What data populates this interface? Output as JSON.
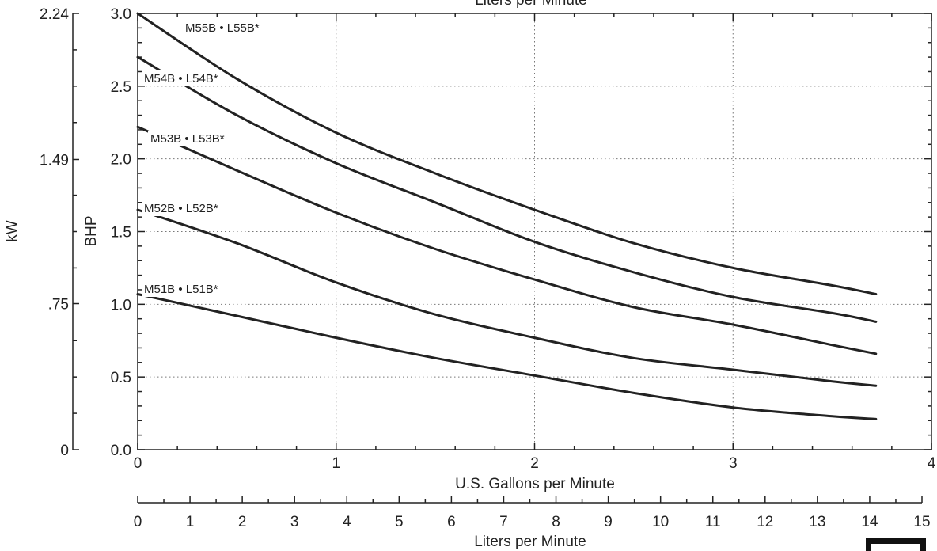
{
  "chart_data": {
    "type": "line",
    "top_axis_label": "Liters per Minute",
    "xlabel": "U.S. Gallons per Minute",
    "xlim": [
      0,
      4
    ],
    "x_ticks": [
      "0",
      "1",
      "2",
      "3",
      "4"
    ],
    "ylabel": "BHP",
    "ylim": [
      0,
      3
    ],
    "y_ticks": [
      "0.0",
      "0.5",
      "1.0",
      "1.5",
      "2.0",
      "2.5",
      "3.0"
    ],
    "secondary_y_label": "kW",
    "secondary_y_ticks": [
      "0",
      ".75",
      "1.49",
      "2.24"
    ],
    "secondary_x_label": "Liters per Minute",
    "secondary_x_ticks": [
      "0",
      "1",
      "2",
      "3",
      "4",
      "5",
      "6",
      "7",
      "8",
      "9",
      "10",
      "11",
      "12",
      "13",
      "14",
      "15"
    ],
    "grid": true,
    "series": [
      {
        "name": "M55B • L55B*",
        "x": [
          0,
          0.5,
          1.0,
          1.5,
          2.0,
          2.5,
          3.0,
          3.5,
          3.72
        ],
        "y": [
          3.0,
          2.55,
          2.18,
          1.9,
          1.65,
          1.42,
          1.25,
          1.13,
          1.07
        ]
      },
      {
        "name": "M54B • L54B*",
        "x": [
          0,
          0.5,
          1.0,
          1.5,
          2.0,
          2.5,
          3.0,
          3.5,
          3.72
        ],
        "y": [
          2.7,
          2.3,
          1.97,
          1.7,
          1.43,
          1.22,
          1.05,
          0.94,
          0.88
        ]
      },
      {
        "name": "M53B • L53B*",
        "x": [
          0,
          0.5,
          1.0,
          1.5,
          2.0,
          2.5,
          3.0,
          3.5,
          3.72
        ],
        "y": [
          2.22,
          1.92,
          1.63,
          1.38,
          1.17,
          0.98,
          0.86,
          0.72,
          0.66
        ]
      },
      {
        "name": "M52B • L52B*",
        "x": [
          0,
          0.5,
          1.0,
          1.5,
          2.0,
          2.5,
          3.0,
          3.5,
          3.72
        ],
        "y": [
          1.65,
          1.42,
          1.15,
          0.93,
          0.77,
          0.63,
          0.55,
          0.47,
          0.44
        ]
      },
      {
        "name": "M51B • L51B*",
        "x": [
          0,
          0.5,
          1.0,
          1.5,
          2.0,
          2.5,
          3.0,
          3.5,
          3.72
        ],
        "y": [
          1.07,
          0.92,
          0.77,
          0.63,
          0.51,
          0.39,
          0.29,
          0.23,
          0.21
        ]
      }
    ]
  }
}
